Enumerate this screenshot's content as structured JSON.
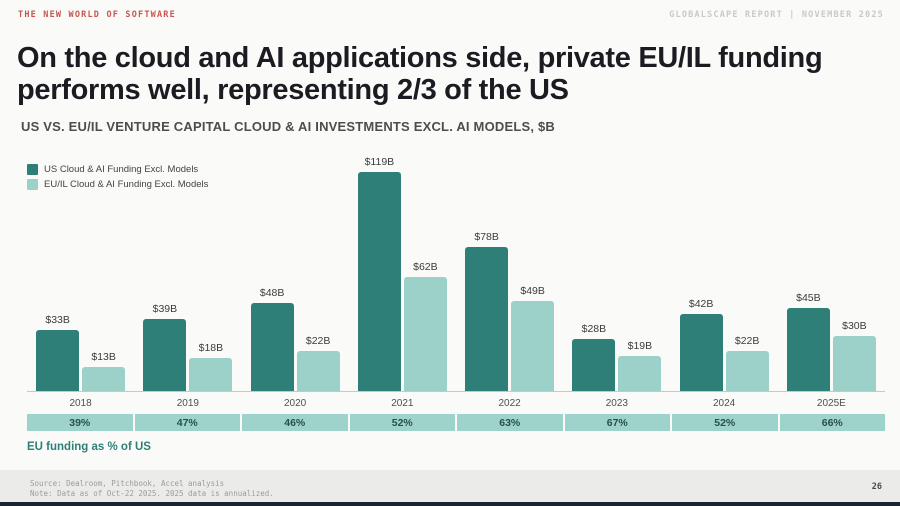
{
  "header": {
    "eyebrow": "THE NEW WORLD OF SOFTWARE",
    "report": "GLOBALSCAPE REPORT | NOVEMBER 2025"
  },
  "title": "On the cloud and AI applications side, private EU/IL funding performs well, representing 2/3 of the US",
  "chart_data": {
    "type": "bar",
    "title": "US VS. EU/IL VENTURE CAPITAL CLOUD & AI INVESTMENTS EXCL. AI MODELS, $B",
    "categories": [
      "2018",
      "2019",
      "2020",
      "2021",
      "2022",
      "2023",
      "2024",
      "2025E"
    ],
    "series": [
      {
        "name": "US Cloud & AI Funding Excl. Models",
        "color": "#2e7f77",
        "values": [
          33,
          39,
          48,
          119,
          78,
          28,
          42,
          45
        ],
        "labels": [
          "$33B",
          "$39B",
          "$48B",
          "$119B",
          "$78B",
          "$28B",
          "$42B",
          "$45B"
        ]
      },
      {
        "name": "EU/IL Cloud & AI Funding Excl. Models",
        "color": "#9cd1ca",
        "values": [
          13,
          18,
          22,
          62,
          49,
          19,
          22,
          30
        ],
        "labels": [
          "$13B",
          "$18B",
          "$22B",
          "$62B",
          "$49B",
          "$19B",
          "$22B",
          "$30B"
        ]
      }
    ],
    "pct_row": {
      "values": [
        "39%",
        "47%",
        "46%",
        "52%",
        "63%",
        "67%",
        "52%",
        "66%"
      ],
      "caption": "EU funding as % of US"
    },
    "ylim": [
      0,
      125
    ],
    "grid": false,
    "legend_position": "top-left"
  },
  "footer": {
    "source": "Source: Dealroom, Pitchbook, Accel analysis",
    "note": "Note: Data as of Oct-22 2025. 2025 data is annualized.",
    "page": "26"
  },
  "colors": {
    "us_bar": "#2e7f77",
    "eu_bar": "#9cd1ca",
    "pct_cell_bg": "#9ed3cc",
    "eyebrow_red": "#c4564f",
    "background": "#fafbf8",
    "footer_band": "#ebebe9",
    "bottom_bar": "#1b2433"
  }
}
